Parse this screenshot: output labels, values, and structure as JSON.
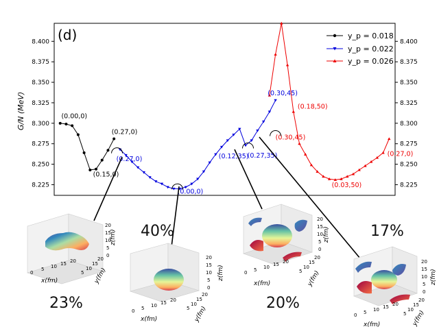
{
  "chart_data": {
    "type": "line",
    "panel_label": "(d)",
    "ylabel": "G/N (MeV)",
    "ylim": [
      8.212,
      8.422
    ],
    "yticks": [
      "8.225",
      "8.250",
      "8.275",
      "8.300",
      "8.325",
      "8.350",
      "8.375",
      "8.400"
    ],
    "ytick_values": [
      8.225,
      8.25,
      8.275,
      8.3,
      8.325,
      8.35,
      8.375,
      8.4
    ],
    "xlim": [
      0,
      57
    ],
    "legend": {
      "placement": "top-right",
      "entries": [
        "y_p = 0.018",
        "y_p = 0.022",
        "y_p = 0.026"
      ]
    },
    "series": [
      {
        "name": "y_p = 0.018",
        "color": "#000000",
        "marker": "circle",
        "x": [
          1,
          2,
          3,
          4,
          5,
          6,
          7,
          8,
          9,
          10
        ],
        "values": [
          8.3,
          8.299,
          8.297,
          8.286,
          8.264,
          8.243,
          8.244,
          8.255,
          8.267,
          8.281
        ]
      },
      {
        "name": "y_p = 0.022",
        "color": "#0000dd",
        "marker": "triangle-down",
        "x": [
          11,
          12,
          13,
          14,
          15,
          16,
          17,
          18,
          19,
          20,
          21,
          22,
          23,
          24,
          25,
          26,
          27,
          28,
          29,
          30,
          31,
          32,
          33,
          34,
          35,
          36,
          37
        ],
        "values": [
          8.268,
          8.261,
          8.253,
          8.246,
          8.24,
          8.234,
          8.229,
          8.226,
          8.222,
          8.22,
          8.22,
          8.222,
          8.226,
          8.232,
          8.241,
          8.252,
          8.262,
          8.271,
          8.279,
          8.286,
          8.293,
          8.273,
          8.279,
          8.291,
          8.302,
          8.314,
          8.328
        ]
      },
      {
        "name": "y_p = 0.026",
        "color": "#ee0000",
        "marker": "triangle-up",
        "x": [
          36,
          37,
          38,
          39,
          40,
          41,
          42,
          43,
          44,
          45,
          46,
          47,
          48,
          49,
          50,
          51,
          52,
          53,
          54,
          55,
          56
        ],
        "values": [
          8.334,
          8.384,
          8.422,
          8.371,
          8.314,
          8.275,
          8.262,
          8.249,
          8.241,
          8.235,
          8.232,
          8.231,
          8.232,
          8.235,
          8.238,
          8.243,
          8.248,
          8.253,
          8.258,
          8.264,
          8.281
        ]
      }
    ],
    "annotations": [
      {
        "text": "(0.00,0)",
        "x": 1.2,
        "y": 8.306,
        "color": "#000000"
      },
      {
        "text": "(0.15,0)",
        "x": 6.5,
        "y": 8.235,
        "color": "#000000"
      },
      {
        "text": "(0.27,0)",
        "x": 9.6,
        "y": 8.287,
        "color": "#000000"
      },
      {
        "text": "(0.27,0)",
        "x": 10.4,
        "y": 8.254,
        "color": "#0000dd"
      },
      {
        "text": "(0.00,0)",
        "x": 20.6,
        "y": 8.214,
        "color": "#0000dd"
      },
      {
        "text": "(0.12,35)",
        "x": 27.5,
        "y": 8.257,
        "color": "#0000dd"
      },
      {
        "text": "(0.27,35)",
        "x": 32.3,
        "y": 8.258,
        "color": "#0000dd"
      },
      {
        "text": "(0.30,45)",
        "x": 35.7,
        "y": 8.334,
        "color": "#0000dd"
      },
      {
        "text": "(0.18,50)",
        "x": 40.7,
        "y": 8.318,
        "color": "#ee0000"
      },
      {
        "text": "(0.30,45)",
        "x": 37.0,
        "y": 8.28,
        "color": "#ee0000"
      },
      {
        "text": "(0.03,50)",
        "x": 46.4,
        "y": 8.222,
        "color": "#ee0000"
      },
      {
        "text": "(0.27,0)",
        "x": 55.7,
        "y": 8.26,
        "color": "#ee0000"
      }
    ],
    "callouts": [
      {
        "x": 10.5,
        "y": 8.265
      },
      {
        "x": 20.6,
        "y": 8.221
      },
      {
        "x": 32.4,
        "y": 8.271
      },
      {
        "x": 37.0,
        "y": 8.286
      }
    ]
  },
  "insets": [
    {
      "name": "inset-1",
      "percentage": "23%",
      "xlabel": "x(fm)",
      "ylabel": "y(fm)",
      "zlabel": "z(fm)",
      "xticks": [
        "0",
        "5",
        "10",
        "15",
        "20"
      ],
      "yticks": [
        "20",
        "15",
        "10",
        "5"
      ],
      "zticks": [
        "20",
        "15",
        "10",
        "5",
        "0"
      ]
    },
    {
      "name": "inset-2",
      "percentage": "40%",
      "xlabel": "x(fm)",
      "ylabel": "y(fm)",
      "zlabel": "z(fm)",
      "xticks": [
        "0",
        "5",
        "10",
        "15",
        "20"
      ],
      "yticks": [
        "20",
        "15",
        "10",
        "5"
      ],
      "zticks": [
        "20",
        "15",
        "10",
        "5",
        "0"
      ]
    },
    {
      "name": "inset-3",
      "percentage": "20%",
      "xlabel": "x(fm)",
      "ylabel": "y(fm)",
      "zlabel": "z(fm)",
      "xticks": [
        "0",
        "5",
        "10",
        "15",
        "20"
      ],
      "yticks": [
        "20",
        "15",
        "10",
        "5"
      ],
      "zticks": [
        "20",
        "15",
        "10",
        "5",
        "0"
      ]
    },
    {
      "name": "inset-4",
      "percentage": "17%",
      "xlabel": "x(fm)",
      "ylabel": "y(fm)",
      "zlabel": "z(fm)",
      "xticks": [
        "0",
        "5",
        "10",
        "15",
        "20"
      ],
      "yticks": [
        "20",
        "15",
        "10",
        "5"
      ],
      "zticks": [
        "20",
        "15",
        "10",
        "5",
        "0"
      ]
    }
  ]
}
